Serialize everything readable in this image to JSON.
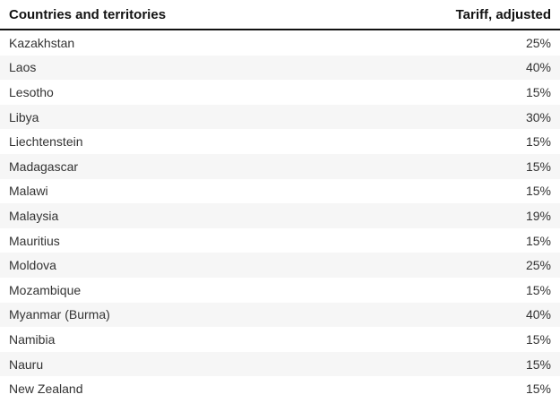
{
  "chart_data": {
    "type": "table",
    "columns": [
      "Countries and territories",
      "Tariff, adjusted"
    ],
    "rows": [
      [
        "Kazakhstan",
        "25%"
      ],
      [
        "Laos",
        "40%"
      ],
      [
        "Lesotho",
        "15%"
      ],
      [
        "Libya",
        "30%"
      ],
      [
        "Liechtenstein",
        "15%"
      ],
      [
        "Madagascar",
        "15%"
      ],
      [
        "Malawi",
        "15%"
      ],
      [
        "Malaysia",
        "19%"
      ],
      [
        "Mauritius",
        "15%"
      ],
      [
        "Moldova",
        "25%"
      ],
      [
        "Mozambique",
        "15%"
      ],
      [
        "Myanmar (Burma)",
        "40%"
      ],
      [
        "Namibia",
        "15%"
      ],
      [
        "Nauru",
        "15%"
      ],
      [
        "New Zealand",
        "15%"
      ]
    ],
    "layout": {
      "zebra_striping": true,
      "alt_row_bg": "#f6f6f6",
      "header_rule_color": "#121212",
      "header_text_color": "#121212",
      "row_text_color": "#333333",
      "tariff_column_align": "right"
    }
  }
}
